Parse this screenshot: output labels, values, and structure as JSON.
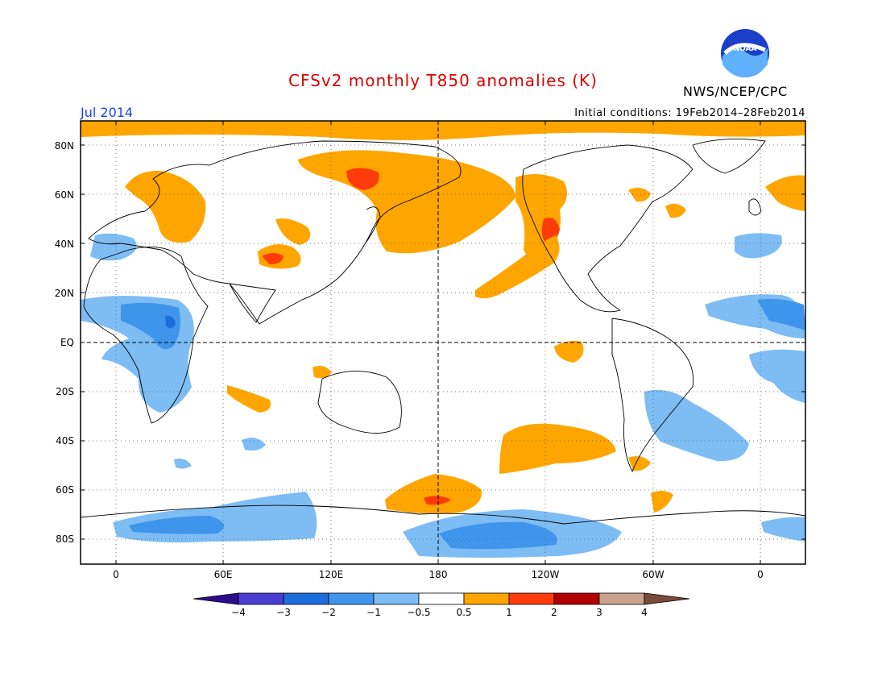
{
  "header": {
    "title": "CFSv2 monthly T850 anomalies (K)",
    "month": "Jul 2014",
    "initial_conditions": "Initial conditions: 19Feb2014–28Feb2014",
    "organization": "NWS/NCEP/CPC",
    "logo_text": "NOAA"
  },
  "axes": {
    "lat_labels": [
      "80N",
      "60N",
      "40N",
      "20N",
      "EQ",
      "20S",
      "40S",
      "60S",
      "80S"
    ],
    "lon_labels": [
      "0",
      "60E",
      "120E",
      "180",
      "120W",
      "60W",
      "0"
    ]
  },
  "colorbar": {
    "labels": [
      "−4",
      "−3",
      "−2",
      "−1",
      "−0.5",
      "0.5",
      "1",
      "2",
      "3",
      "4"
    ],
    "colors": [
      "#2c0b8c",
      "#4b3fd2",
      "#1d6ddc",
      "#3f95ec",
      "#7dbdf4",
      "#ffffff",
      "#ffa500",
      "#ff3b0a",
      "#b00000",
      "#c8a28a",
      "#7a4a3a"
    ]
  },
  "colors": {
    "warm_1": "#ffa500",
    "warm_2": "#ff3b0a",
    "cool_1": "#7dbdf4",
    "cool_2": "#3f95ec",
    "cool_3": "#1d6ddc"
  }
}
